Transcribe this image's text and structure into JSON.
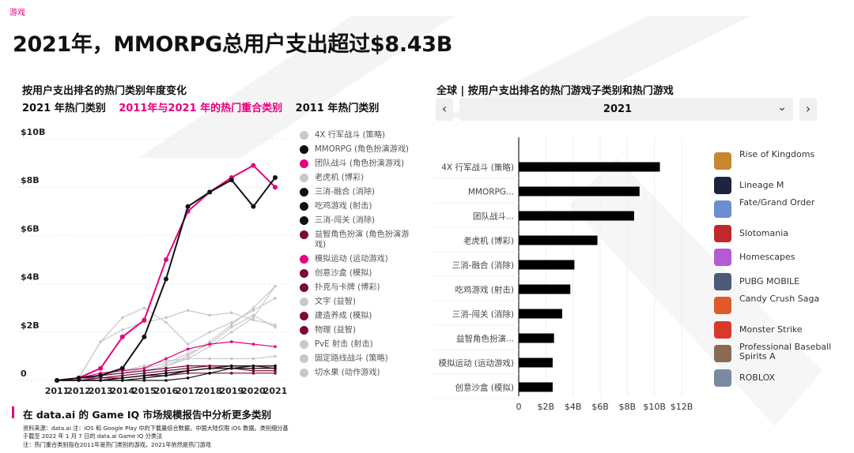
{
  "header": {
    "tag": "游戏",
    "title": "2021年，MMORPG总用户支出超过$8.43B"
  },
  "left_chart": {
    "title": "按用户支出排名的热门类别年度变化",
    "legend_labels": {
      "top_2021": "2021 年热门类别",
      "overlap": "2011年与2021 年的热门重合类别",
      "top_2011": "2011 年热门类别"
    }
  },
  "right_chart": {
    "title": "全球 | 按用户支出排名的热门游戏子类别和热门游戏",
    "year": "2021",
    "prev_icon": "‹",
    "next_icon": "›",
    "caret_icon": "⌄"
  },
  "colors": {
    "accent": "#e6007e",
    "black": "#111111",
    "gray": "#c8c8c8",
    "dark_magenta": "#7a0a3c",
    "bar": "#000000"
  },
  "chart_data": [
    {
      "type": "line",
      "title": "按用户支出排名的热门类别年度变化",
      "x": [
        "2011",
        "2012",
        "2013",
        "2014",
        "2015",
        "2016",
        "2017",
        "2018",
        "2019",
        "2020",
        "2021"
      ],
      "y_ticks": [
        "0",
        "$2B",
        "$4B",
        "$6B",
        "$8B",
        "$10B"
      ],
      "ylim": [
        0,
        10
      ],
      "series": [
        {
          "name": "4X 行军战斗 (策略)",
          "group": "gray",
          "values": [
            0,
            0.1,
            1.6,
            2.1,
            2.4,
            2.6,
            2.9,
            2.7,
            2.8,
            2.5,
            2.3
          ]
        },
        {
          "name": "MMORPG (角色扮演游戏)",
          "group": "black",
          "values": [
            0,
            0.1,
            0.2,
            0.5,
            1.8,
            4.2,
            7.2,
            7.8,
            8.3,
            7.2,
            8.4
          ]
        },
        {
          "name": "团队战斗 (角色扮演游戏)",
          "group": "pink",
          "values": [
            0,
            0.1,
            0.5,
            1.8,
            2.5,
            5.0,
            7.0,
            7.8,
            8.4,
            8.9,
            8.0
          ]
        },
        {
          "name": "老虎机 (博彩)",
          "group": "gray",
          "values": [
            0,
            0.1,
            1.6,
            2.6,
            3.0,
            2.4,
            1.5,
            2.0,
            2.4,
            2.9,
            3.4
          ]
        },
        {
          "name": "三消-融合 (消除)",
          "group": "black",
          "values": [
            0,
            0,
            0,
            0,
            0.1,
            0.2,
            0.4,
            0.5,
            0.6,
            0.6,
            0.6
          ]
        },
        {
          "name": "吃鸡游戏 (射击)",
          "group": "black",
          "values": [
            0,
            0,
            0,
            0,
            0,
            0,
            0.1,
            0.3,
            0.5,
            0.6,
            0.6
          ]
        },
        {
          "name": "三消-闯关 (消除)",
          "group": "black",
          "values": [
            0,
            0,
            0,
            0.1,
            0.2,
            0.3,
            0.4,
            0.5,
            0.5,
            0.5,
            0.5
          ]
        },
        {
          "name": "益智角色扮演 (角色扮演游戏)",
          "group": "dark_magenta",
          "values": [
            0,
            0,
            0,
            0.1,
            0.2,
            0.3,
            0.4,
            0.5,
            0.5,
            0.4,
            0.4
          ]
        },
        {
          "name": "模拟运动 (运动游戏)",
          "group": "pink",
          "values": [
            0,
            0.1,
            0.3,
            0.4,
            0.5,
            0.9,
            1.3,
            1.5,
            1.6,
            1.5,
            1.4
          ]
        },
        {
          "name": "创意沙盒 (模拟)",
          "group": "dark_magenta",
          "values": [
            0,
            0,
            0,
            0.1,
            0.2,
            0.3,
            0.4,
            0.5,
            0.5,
            0.5,
            0.5
          ]
        },
        {
          "name": "扑克与卡牌 (博彩)",
          "group": "dark_magenta",
          "values": [
            0,
            0.1,
            0.2,
            0.3,
            0.4,
            0.5,
            0.6,
            0.6,
            0.6,
            0.6,
            0.5
          ]
        },
        {
          "name": "文字 (益智)",
          "group": "gray",
          "values": [
            0,
            0.1,
            0.2,
            0.3,
            0.4,
            0.6,
            1.0,
            1.6,
            2.3,
            3.0,
            3.9
          ]
        },
        {
          "name": "建造养成 (模拟)",
          "group": "dark_magenta",
          "values": [
            0,
            0.1,
            0.1,
            0.2,
            0.3,
            0.4,
            0.5,
            0.6,
            0.6,
            0.6,
            0.6
          ]
        },
        {
          "name": "物理 (益智)",
          "group": "dark_magenta",
          "values": [
            0,
            0,
            0.1,
            0.1,
            0.2,
            0.2,
            0.3,
            0.3,
            0.3,
            0.3,
            0.3
          ]
        },
        {
          "name": "PvE 射击 (射击)",
          "group": "gray",
          "values": [
            0,
            0.1,
            0.2,
            0.4,
            0.6,
            0.8,
            0.9,
            0.9,
            0.9,
            0.9,
            1.0
          ]
        },
        {
          "name": "固定路线战斗 (策略)",
          "group": "gray",
          "values": [
            0,
            0.1,
            0.2,
            0.3,
            0.5,
            0.7,
            1.1,
            1.5,
            2.2,
            2.7,
            2.2
          ]
        },
        {
          "name": "切水果 (动作游戏)",
          "group": "gray",
          "values": [
            0,
            0.1,
            0.2,
            0.3,
            0.4,
            0.6,
            0.9,
            1.4,
            2.0,
            2.6,
            3.9
          ]
        }
      ]
    },
    {
      "type": "bar",
      "orientation": "horizontal",
      "title": "全球 | 按用户支出排名的热门游戏子类别和热门游戏",
      "categories": [
        "4X 行军战斗 (策略)",
        "MMORPG...",
        "团队战斗...",
        "老虎机 (博彩)",
        "三消-融合 (消除)",
        "吃鸡游戏 (射击)",
        "三消-闯关 (消除)",
        "益智角色扮演...",
        "模拟运动 (运动游戏)",
        "创意沙盒 (模拟)"
      ],
      "values": [
        10.4,
        8.9,
        8.5,
        5.8,
        4.1,
        3.8,
        3.2,
        2.6,
        2.5,
        2.5
      ],
      "x_ticks": [
        "0",
        "$2B",
        "$4B",
        "$6B",
        "$8B",
        "$10B",
        "$12B"
      ],
      "xlim": [
        0,
        12
      ]
    }
  ],
  "top_games": [
    {
      "name": "Rise of Kingdoms",
      "icon": "rise-of-kingdoms-icon",
      "color": "#c8862e"
    },
    {
      "name": "Lineage M",
      "icon": "lineage-m-icon",
      "color": "#1c2440"
    },
    {
      "name": "Fate/Grand Order",
      "icon": "fate-grand-order-icon",
      "color": "#6b8fd0"
    },
    {
      "name": "Slotomania",
      "icon": "slotomania-icon",
      "color": "#c0282a"
    },
    {
      "name": "Homescapes",
      "icon": "homescapes-icon",
      "color": "#b45ad2"
    },
    {
      "name": "PUBG MOBILE",
      "icon": "pubg-mobile-icon",
      "color": "#4a5a78"
    },
    {
      "name": "Candy Crush Saga",
      "icon": "candy-crush-saga-icon",
      "color": "#e05a2a"
    },
    {
      "name": "Monster Strike",
      "icon": "monster-strike-icon",
      "color": "#d83a2a"
    },
    {
      "name": "Professional Baseball Spirits A",
      "icon": "baseball-spirits-icon",
      "color": "#8a6a52"
    },
    {
      "name": "ROBLOX",
      "icon": "roblox-icon",
      "color": "#7a8aa0"
    }
  ],
  "footer": {
    "more_text": "在 data.ai 的 Game IQ 市场规模报告中分析更多类别",
    "source": "资料来源：data.ai 注：iOS 和 Google Play 中的下载量综合数据，中国大陆仅限 iOS 数据。类别细分基于截至 2022 年 1 月 7 日的 data.ai Game IQ 分类法",
    "note": "注：热门重合类别指在2011年是热门类别的游戏。2021年依然是热门游戏"
  }
}
